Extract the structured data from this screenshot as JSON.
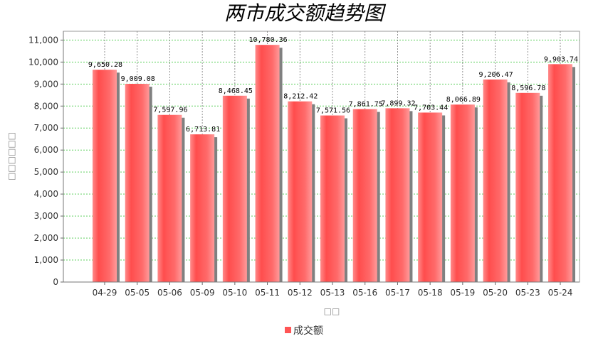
{
  "chart_data": {
    "type": "bar",
    "title": "两市成交额趋势图",
    "xlabel": "□□",
    "ylabel": "□□□□□□",
    "categories": [
      "04-29",
      "05-05",
      "05-06",
      "05-09",
      "05-10",
      "05-11",
      "05-12",
      "05-13",
      "05-16",
      "05-17",
      "05-18",
      "05-19",
      "05-20",
      "05-23",
      "05-24"
    ],
    "series": [
      {
        "name": "成交额",
        "values": [
          9650.28,
          9009.08,
          7597.96,
          6713.81,
          8468.45,
          10780.36,
          8212.42,
          7571.56,
          7861.75,
          7899.32,
          7703.44,
          8066.89,
          9206.47,
          8596.78,
          9903.74
        ]
      }
    ],
    "data_labels": [
      "9,650.28",
      "9,009.08",
      "7,597.96",
      "6,713.81",
      "8,468.45",
      "10,780.36",
      "8,212.42",
      "7,571.56",
      "7,861.75",
      "7,899.32",
      "7,703.44",
      "8,066.89",
      "9,206.47",
      "8,596.78",
      "9,903.74"
    ],
    "y_ticks": [
      "0",
      "1,000",
      "2,000",
      "3,000",
      "4,000",
      "5,000",
      "6,000",
      "7,000",
      "8,000",
      "9,000",
      "10,000",
      "11,000"
    ],
    "ylim": [
      0,
      11400
    ],
    "grid": true,
    "legend_position": "bottom-center",
    "colors": {
      "bar": "#ff5a5a",
      "bar_shadow": "#808080",
      "grid_h": "#5fd05f",
      "grid_v": "#777777"
    }
  }
}
